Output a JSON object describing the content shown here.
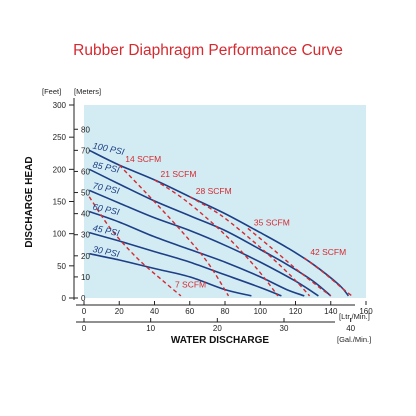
{
  "title": "Rubber Diaphragm Performance Curve",
  "colors": {
    "title": "#d42a30",
    "psi_curve": "#1d3f86",
    "scfm_curve": "#d42a30",
    "plot_bg": "#d3ebf3"
  },
  "chart_data": {
    "type": "line",
    "xlabel": "WATER DISCHARGE",
    "ylabel": "DISCHARGE HEAD",
    "x_primary": {
      "unit": "[Ltr./Min.]",
      "lim": [
        0,
        160
      ],
      "ticks": [
        0,
        20,
        40,
        60,
        80,
        100,
        120,
        140,
        160
      ]
    },
    "x_secondary": {
      "unit": "[Gal./Min.]",
      "lim": [
        0,
        42.3
      ],
      "ticks": [
        0,
        10,
        20,
        30,
        40
      ]
    },
    "y_primary": {
      "unit": "[Meters]",
      "lim": [
        0,
        91.5
      ],
      "ticks": [
        0,
        10,
        20,
        30,
        40,
        50,
        60,
        70,
        80
      ]
    },
    "y_secondary": {
      "unit": "[Feet]",
      "lim": [
        0,
        300
      ],
      "ticks": [
        0,
        50,
        100,
        150,
        200,
        250,
        300
      ]
    },
    "grid": false,
    "series": [
      {
        "name": "100 PSI",
        "kind": "pressure",
        "x": [
          3,
          20,
          40,
          60,
          80,
          100,
          115,
          130,
          145,
          150
        ],
        "y": [
          70,
          63,
          56,
          48,
          40,
          31,
          24,
          16,
          6,
          1
        ]
      },
      {
        "name": "85 PSI",
        "kind": "pressure",
        "x": [
          3,
          20,
          40,
          60,
          80,
          100,
          115,
          130,
          140
        ],
        "y": [
          61,
          54,
          46,
          39,
          32,
          23,
          16,
          8,
          1
        ]
      },
      {
        "name": "70 PSI",
        "kind": "pressure",
        "x": [
          3,
          20,
          40,
          60,
          80,
          100,
          120,
          133
        ],
        "y": [
          51,
          45,
          38,
          32,
          25,
          17,
          8,
          1
        ]
      },
      {
        "name": "60 PSI",
        "kind": "pressure",
        "x": [
          3,
          20,
          40,
          60,
          80,
          100,
          115,
          125
        ],
        "y": [
          41,
          36,
          29,
          23,
          17,
          10,
          4,
          1
        ]
      },
      {
        "name": "45 PSI",
        "kind": "pressure",
        "x": [
          3,
          20,
          40,
          60,
          80,
          100,
          112
        ],
        "y": [
          31,
          27,
          22,
          17,
          11,
          5,
          1
        ]
      },
      {
        "name": "30 PSI",
        "kind": "pressure",
        "x": [
          3,
          20,
          40,
          60,
          80,
          95
        ],
        "y": [
          21,
          18,
          14,
          10,
          4,
          1
        ]
      },
      {
        "name": "7 SCFM",
        "kind": "air",
        "x": [
          3,
          15,
          30,
          45,
          55
        ],
        "y": [
          48,
          33,
          19,
          8,
          1
        ]
      },
      {
        "name": "14 SCFM",
        "kind": "air",
        "x": [
          20,
          35,
          55,
          70,
          82
        ],
        "y": [
          63,
          50,
          32,
          17,
          1
        ]
      },
      {
        "name": "21 SCFM",
        "kind": "air",
        "x": [
          40,
          58,
          80,
          98,
          110
        ],
        "y": [
          56,
          46,
          30,
          14,
          1
        ]
      },
      {
        "name": "28 SCFM",
        "kind": "air",
        "x": [
          60,
          78,
          100,
          118,
          128
        ],
        "y": [
          48,
          39,
          24,
          10,
          1
        ]
      },
      {
        "name": "35 SCFM",
        "kind": "air",
        "x": [
          93,
          106,
          120,
          132,
          140
        ],
        "y": [
          33,
          24,
          14,
          6,
          1
        ]
      },
      {
        "name": "42 SCFM",
        "kind": "air",
        "x": [
          125,
          136,
          146,
          152
        ],
        "y": [
          19,
          12,
          5,
          1
        ]
      }
    ]
  }
}
